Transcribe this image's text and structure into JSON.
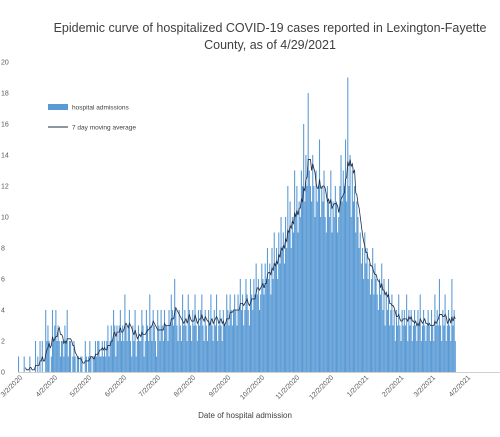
{
  "chart_data": {
    "type": "bar",
    "title_line1": "Epidemic curve of hospitalized COVID-19 cases reported in Lexington-Fayette",
    "title_line2": "County, as of 4/29/2021",
    "xlabel": "Date of hospital admission",
    "ylabel": "",
    "ylim": [
      0,
      20
    ],
    "yticks": [
      0,
      2,
      4,
      6,
      8,
      10,
      12,
      14,
      16,
      18,
      20
    ],
    "grid": false,
    "legend_position": "top-left",
    "x_start_date": "2020-03-01",
    "x_end_date": "2021-04-30",
    "xtick_labels": [
      "3/2/2020",
      "4/2/2020",
      "5/2/2020",
      "6/2/2020",
      "7/2/2020",
      "8/2/2020",
      "9/2/2020",
      "10/2/2020",
      "11/2/2020",
      "12/2/2020",
      "1/2/2021",
      "2/2/2021",
      "3/2/2021",
      "4/2/2021"
    ],
    "xtick_dates": [
      "2020-03-02",
      "2020-04-02",
      "2020-05-02",
      "2020-06-02",
      "2020-07-02",
      "2020-08-02",
      "2020-09-02",
      "2020-10-02",
      "2020-11-02",
      "2020-12-02",
      "2021-01-02",
      "2021-02-02",
      "2021-03-02",
      "2021-04-02"
    ],
    "series": [
      {
        "name": "hospital admissions",
        "kind": "bar",
        "color": "#5b9bd5",
        "values": [
          1,
          0,
          0,
          0,
          0,
          1,
          0,
          0,
          0,
          0,
          1,
          0,
          0,
          0,
          0,
          2,
          0,
          1,
          0,
          2,
          0,
          2,
          0,
          0,
          4,
          2,
          3,
          2,
          0,
          1,
          4,
          2,
          3,
          4,
          2,
          3,
          2,
          1,
          2,
          2,
          1,
          3,
          2,
          4,
          1,
          2,
          2,
          0,
          1,
          2,
          1,
          0,
          1,
          1,
          0,
          1,
          1,
          0,
          0,
          2,
          1,
          0,
          1,
          2,
          1,
          0,
          1,
          1,
          2,
          1,
          2,
          2,
          1,
          1,
          2,
          1,
          2,
          1,
          2,
          3,
          1,
          2,
          3,
          2,
          4,
          3,
          1,
          3,
          2,
          3,
          4,
          2,
          3,
          2,
          5,
          3,
          2,
          3,
          4,
          2,
          1,
          3,
          2,
          4,
          1,
          2,
          3,
          2,
          2,
          4,
          3,
          1,
          2,
          4,
          3,
          2,
          5,
          3,
          2,
          4,
          3,
          2,
          1,
          4,
          3,
          2,
          4,
          3,
          2,
          4,
          3,
          3,
          2,
          4,
          3,
          5,
          4,
          3,
          6,
          4,
          3,
          2,
          4,
          3,
          2,
          5,
          3,
          4,
          3,
          2,
          5,
          4,
          3,
          2,
          4,
          3,
          5,
          3,
          2,
          4,
          3,
          4,
          5,
          3,
          2,
          4,
          3,
          2,
          4,
          3,
          5,
          3,
          2,
          4,
          3,
          5,
          2,
          3,
          4,
          3,
          2,
          4,
          3,
          3,
          5,
          4,
          3,
          5,
          4,
          3,
          4,
          5,
          4,
          3,
          5,
          4,
          6,
          4,
          5,
          3,
          4,
          6,
          5,
          4,
          3,
          6,
          5,
          4,
          6,
          5,
          7,
          5,
          6,
          4,
          5,
          7,
          6,
          5,
          7,
          6,
          8,
          6,
          7,
          5,
          8,
          6,
          9,
          7,
          8,
          6,
          9,
          7,
          10,
          8,
          9,
          7,
          10,
          8,
          12,
          9,
          11,
          8,
          10,
          9,
          13,
          10,
          12,
          9,
          11,
          10,
          13,
          12,
          16,
          11,
          14,
          12,
          18,
          13,
          12,
          11,
          14,
          12,
          10,
          13,
          11,
          12,
          15,
          10,
          12,
          11,
          13,
          10,
          9,
          12,
          11,
          10,
          13,
          9,
          11,
          10,
          12,
          11,
          9,
          10,
          12,
          14,
          11,
          13,
          12,
          15,
          11,
          19,
          12,
          14,
          10,
          13,
          11,
          12,
          9,
          11,
          10,
          8,
          9,
          7,
          8,
          6,
          9,
          7,
          8,
          6,
          7,
          5,
          6,
          8,
          5,
          7,
          6,
          5,
          4,
          6,
          5,
          7,
          4,
          6,
          3,
          5,
          4,
          6,
          3,
          4,
          5,
          3,
          4,
          2,
          4,
          3,
          5,
          3,
          2,
          4,
          3,
          4,
          3,
          5,
          2,
          4,
          3,
          4,
          2,
          3,
          4,
          3,
          2,
          4,
          3,
          5,
          2,
          3,
          4,
          3,
          2,
          3,
          4,
          3,
          2,
          4,
          3,
          2,
          5,
          3,
          4,
          3,
          6,
          3,
          2,
          4,
          3,
          5,
          2,
          3,
          4,
          3,
          2,
          6,
          3,
          4,
          2
        ]
      },
      {
        "name": "7 day moving average",
        "kind": "line",
        "color": "#1f2a44",
        "values": []
      }
    ]
  }
}
